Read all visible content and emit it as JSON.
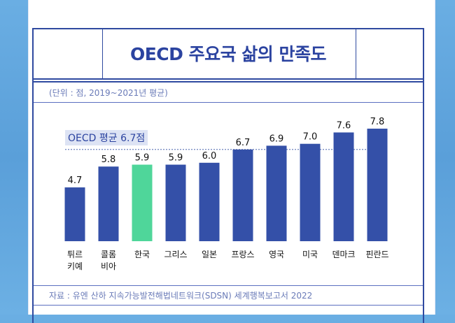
{
  "title": "OECD 주요국 삶의 만족도",
  "subtitle": "(단위 : 점, 2019~2021년 평균)",
  "source": "자료 : 유엔 산하 지속가능발전해법네트워크(SDSN) 세계행복보고서 2022",
  "colors": {
    "bar": "#3450a8",
    "highlight": "#4fd69a",
    "border": "#2f4aa0"
  },
  "chart_data": {
    "type": "bar",
    "categories": [
      "튀르\n키예",
      "콜롬\n비아",
      "한국",
      "그리스",
      "일본",
      "프랑스",
      "영국",
      "미국",
      "덴마크",
      "핀란드"
    ],
    "values": [
      4.7,
      5.8,
      5.9,
      5.9,
      6.0,
      6.7,
      6.9,
      7.0,
      7.6,
      7.8
    ],
    "data_labels": [
      "4.7",
      "5.8",
      "5.9",
      "5.9",
      "6.0",
      "6.7",
      "6.9",
      "7.0",
      "7.6",
      "7.8"
    ],
    "highlight": "한국",
    "reference_line": {
      "value": 6.7,
      "label": "OECD 평균 6.7점",
      "style": "dashed"
    },
    "grid": false,
    "legend": "none"
  }
}
